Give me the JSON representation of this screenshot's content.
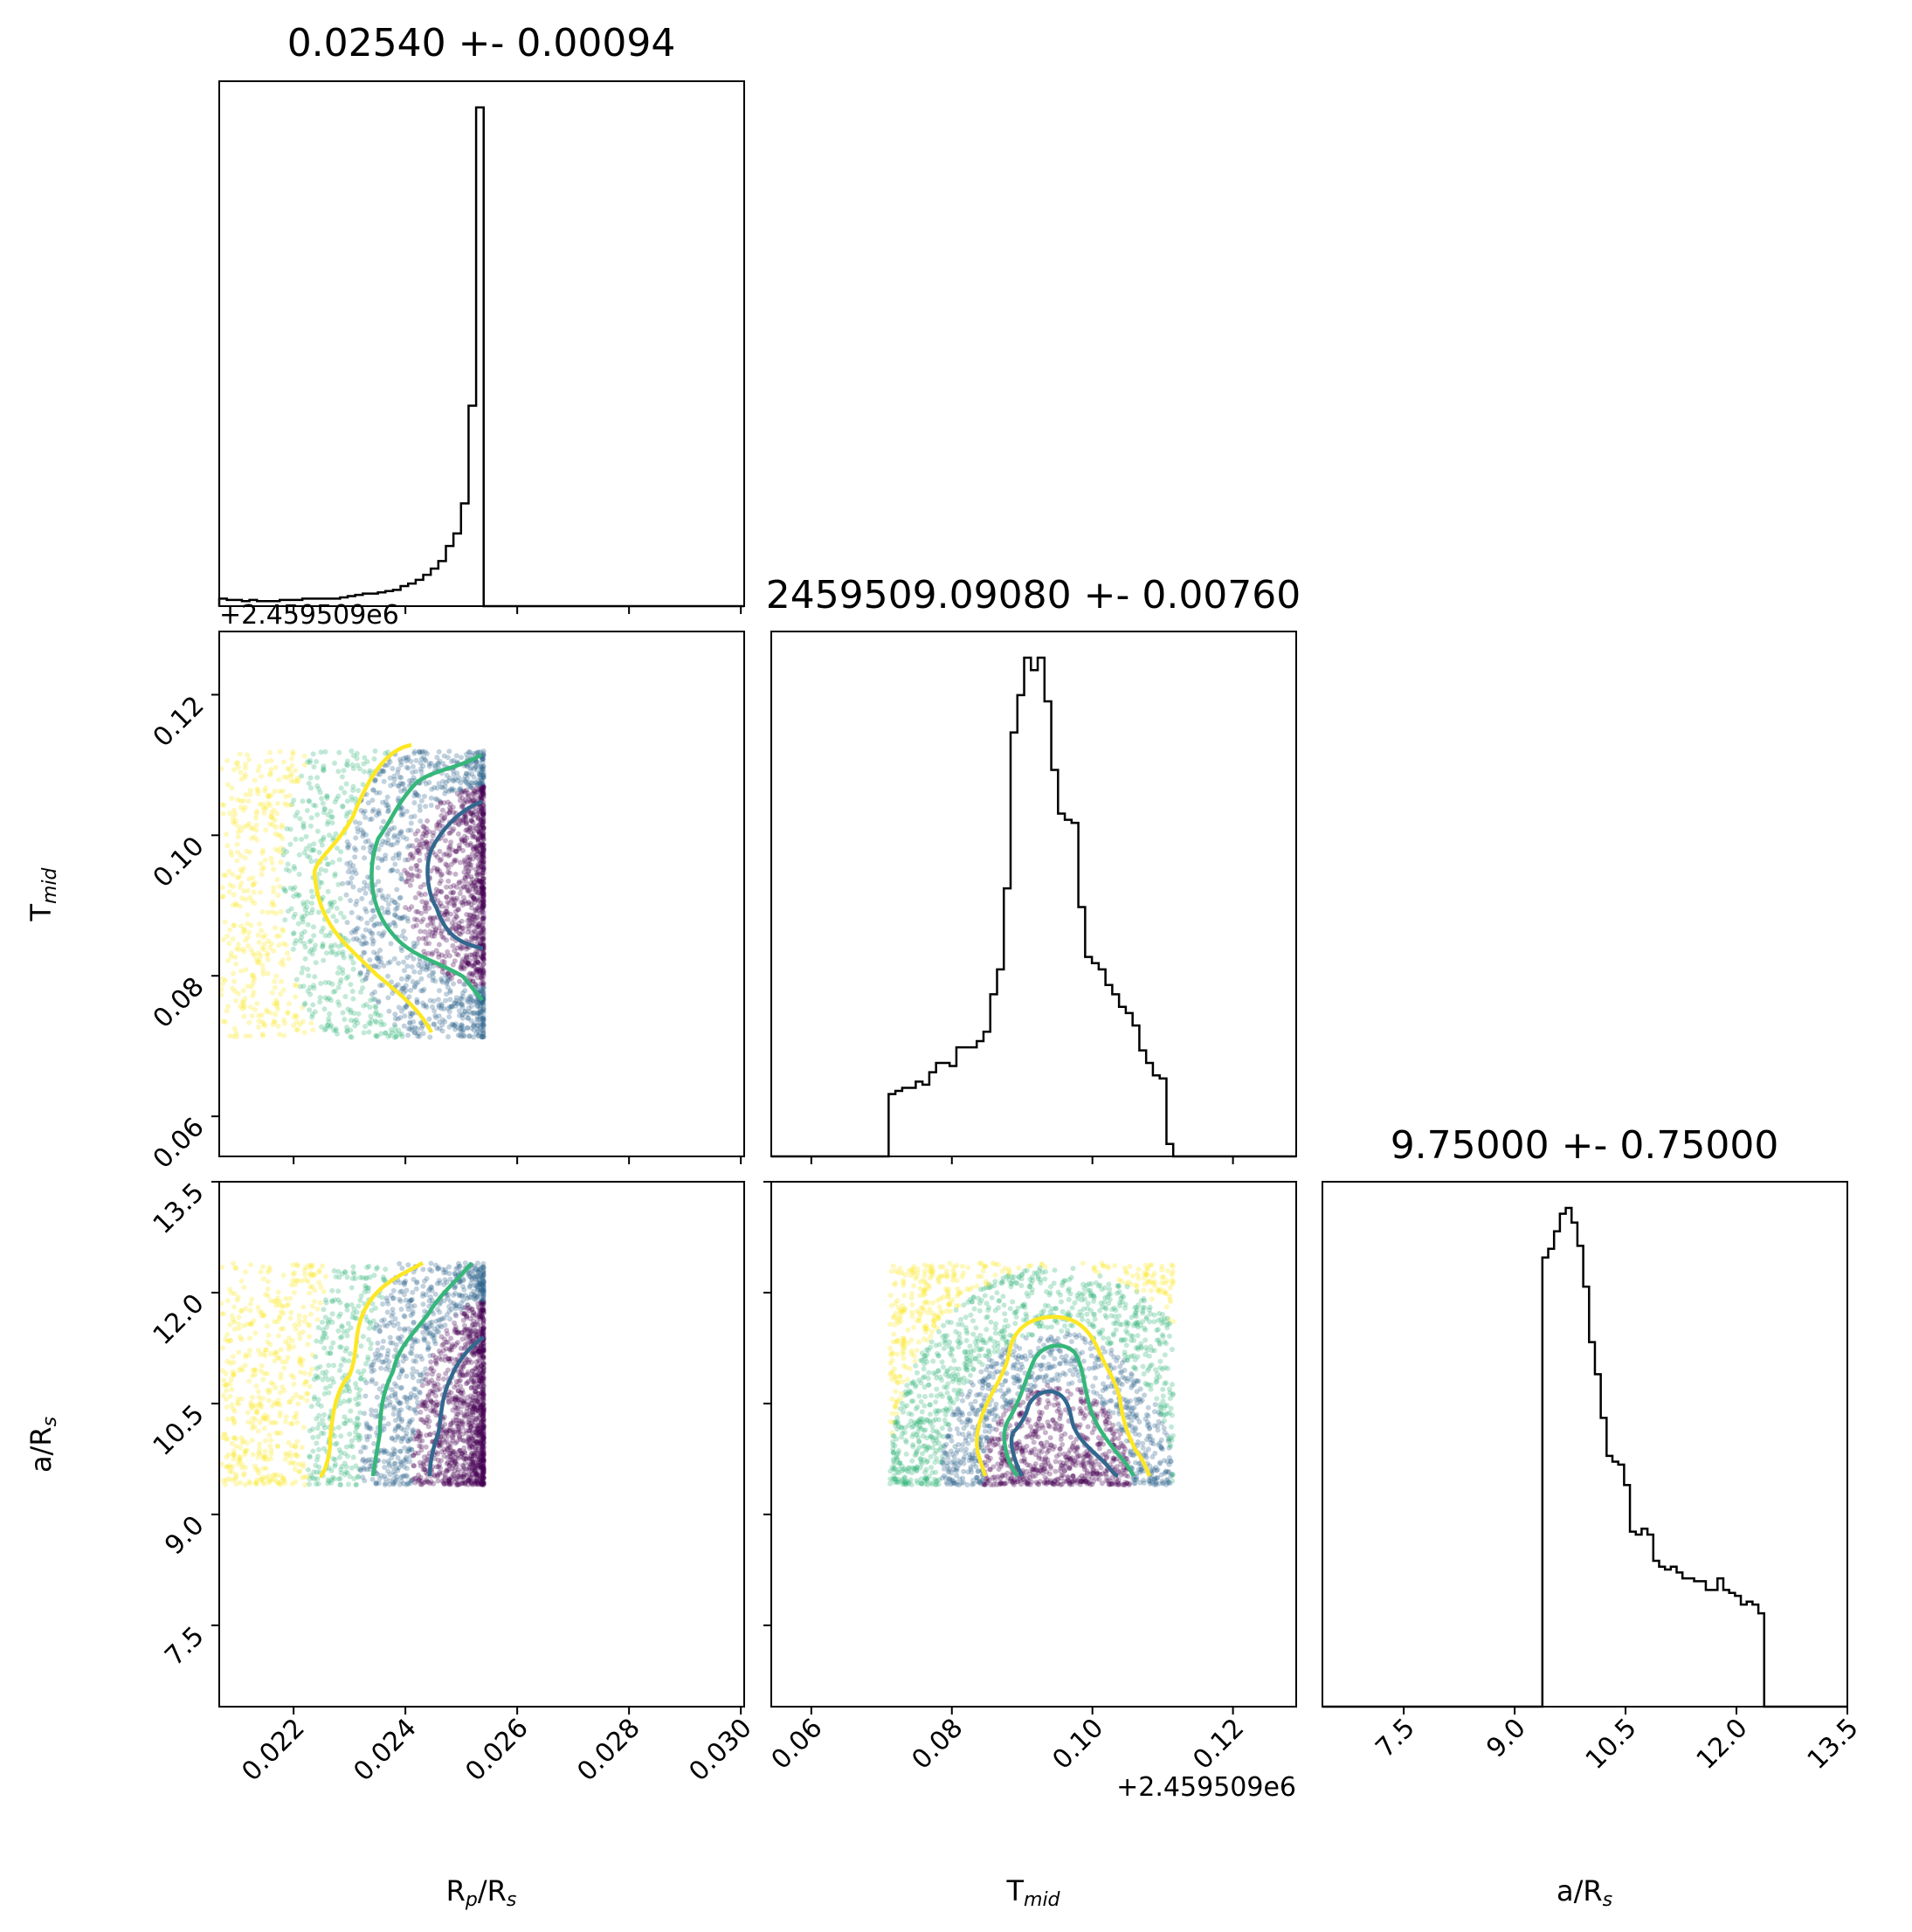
{
  "chart_data": {
    "type": "corner",
    "parameters": [
      "Rp/Rs",
      "Tmid",
      "a/Rs"
    ],
    "axis_labels": {
      "Rp/Rs": {
        "main": "R",
        "sub": "p",
        "tail": "/R",
        "sub2": "s"
      },
      "Tmid": {
        "main": "T",
        "sub": "mid",
        "tail": "",
        "sub2": ""
      },
      "a/Rs": {
        "main": "a/R",
        "sub": "s",
        "tail": "",
        "sub2": ""
      }
    },
    "titles": [
      "0.02540 +- 0.00094",
      "2459509.09080 +- 0.00760",
      "9.75000 +- 0.75000"
    ],
    "offset_text": "+2.459509e6",
    "offset_text_clipped": "+2.459509e6",
    "ranges": {
      "Rp/Rs": [
        0.02067,
        0.03006
      ],
      "Tmid": [
        0.0543,
        0.129
      ],
      "a/Rs": [
        6.4,
        13.5
      ]
    },
    "ticks": {
      "Rp/Rs": [
        0.022,
        0.024,
        0.026,
        0.028,
        0.03
      ],
      "Tmid": [
        0.06,
        0.08,
        0.1,
        0.12
      ],
      "a/Rs": [
        7.5,
        9.0,
        10.5,
        12.0,
        13.5
      ]
    },
    "tick_labels": {
      "Rp/Rs": [
        "0.022",
        "0.024",
        "0.026",
        "0.028",
        "0.030"
      ],
      "Tmid": [
        "0.06",
        "0.08",
        "0.10",
        "0.12"
      ],
      "a/Rs": [
        "7.5",
        "9.0",
        "10.5",
        "12.0",
        "13.5"
      ]
    },
    "histograms": {
      "Rp/Rs": {
        "bin_range": [
          0.02067,
          0.0254
        ],
        "heights": [
          6,
          5,
          5,
          4,
          5,
          4,
          4,
          4,
          5,
          5,
          5,
          6,
          6,
          6,
          6,
          6,
          7,
          8,
          9,
          10,
          10,
          11,
          12,
          13,
          16,
          18,
          21,
          25,
          30,
          36,
          48,
          58,
          82,
          160,
          398
        ]
      },
      "Tmid": {
        "bin_range": [
          0.071,
          0.1115
        ],
        "heights": [
          20,
          21,
          22,
          22,
          24,
          23,
          27,
          30,
          30,
          29,
          35,
          35,
          35,
          37,
          40,
          52,
          60,
          86,
          136,
          148,
          160,
          156,
          160,
          146,
          124,
          110,
          108,
          107,
          80,
          64,
          62,
          60,
          55,
          52,
          48,
          46,
          42,
          34,
          30,
          26,
          25,
          4
        ]
      },
      "a/Rs": {
        "bin_range": [
          9.375,
          12.375
        ],
        "heights": [
          154,
          157,
          163,
          169,
          171,
          166,
          158,
          144,
          125,
          114,
          99,
          86,
          84,
          83,
          76,
          60,
          59,
          61,
          59,
          50,
          48,
          47,
          48,
          46,
          44,
          44,
          43,
          43,
          40,
          40,
          44,
          40,
          39,
          38,
          35,
          36,
          35,
          32
        ]
      }
    },
    "contour_levels": [
      {
        "name": "outer",
        "color": "#fde725"
      },
      {
        "name": "middle",
        "color": "#35b779"
      },
      {
        "name": "inner",
        "color": "#31688e"
      }
    ],
    "scatter_colormap": [
      "#440154",
      "#31688e",
      "#35b779",
      "#fde725"
    ],
    "scatter_opacity": 0.3
  }
}
